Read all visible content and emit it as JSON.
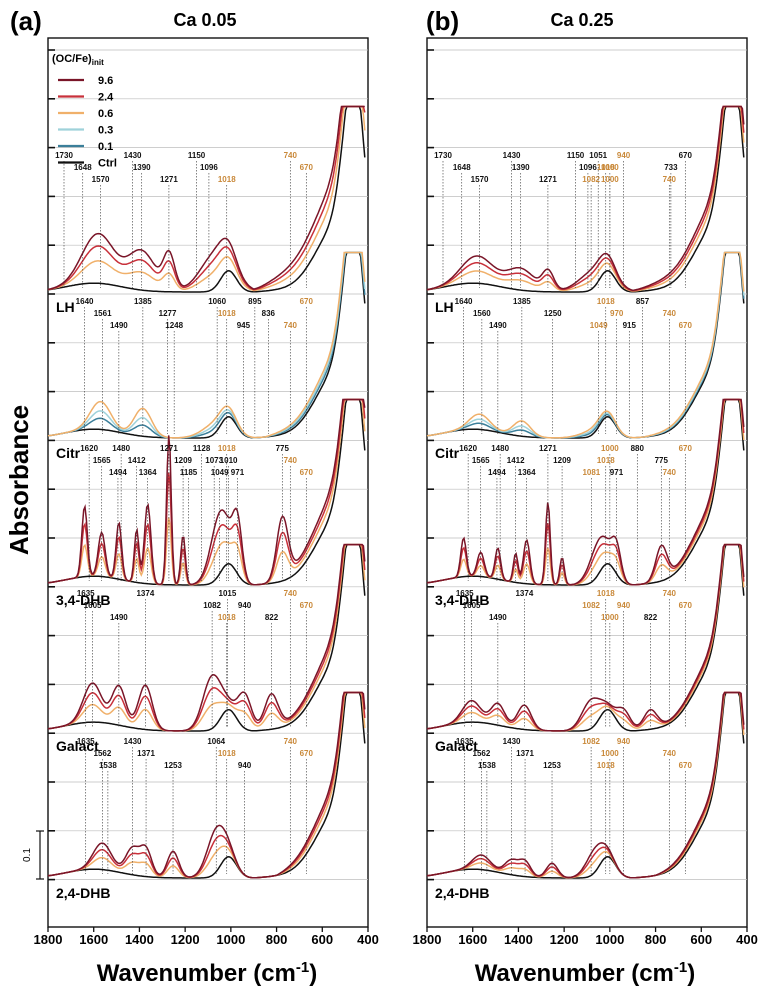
{
  "figure": {
    "ylabel": "Absorbance",
    "xlabel_main": "Wavenumber (cm",
    "xlabel_sup": "-1",
    "xlabel_close": ")",
    "scale_bar": "0.1",
    "legend_title_main": "(OC/Fe)",
    "legend_title_sub": "init"
  },
  "legend": [
    {
      "key": "9.6",
      "label": "9.6",
      "color": "#7a1528"
    },
    {
      "key": "2.4",
      "label": "2.4",
      "color": "#c8303a"
    },
    {
      "key": "0.6",
      "label": "0.6",
      "color": "#f0b06a"
    },
    {
      "key": "0.3",
      "label": "0.3",
      "color": "#9fd2da"
    },
    {
      "key": "0.1",
      "label": "0.1",
      "color": "#3b7f9a"
    },
    {
      "key": "Ctrl",
      "label": "Ctrl",
      "color": "#111111"
    }
  ],
  "chart_data": [
    {
      "type": "line",
      "panel_label": "(a)",
      "title": "Ca 0.05",
      "xlim": [
        1800,
        400
      ],
      "xticks": [
        1800,
        1600,
        1400,
        1200,
        1000,
        800,
        600,
        400
      ],
      "xlabel": "Wavenumber (cm-1)",
      "ylabel": "Absorbance",
      "samples": [
        {
          "name": "LH",
          "series": [
            "9.6",
            "2.4",
            "0.6",
            "Ctrl"
          ],
          "peaks": [
            {
              "x": 1730,
              "label": "1730",
              "c": "b"
            },
            {
              "x": 1648,
              "label": "1648",
              "c": "b"
            },
            {
              "x": 1570,
              "label": "1570",
              "c": "b"
            },
            {
              "x": 1430,
              "label": "1430",
              "c": "b"
            },
            {
              "x": 1390,
              "label": "1390",
              "c": "b"
            },
            {
              "x": 1271,
              "label": "1271",
              "c": "b"
            },
            {
              "x": 1150,
              "label": "1150",
              "c": "b"
            },
            {
              "x": 1096,
              "label": "1096",
              "c": "b"
            },
            {
              "x": 1018,
              "label": "1018",
              "c": "o"
            },
            {
              "x": 740,
              "label": "740",
              "c": "o"
            },
            {
              "x": 670,
              "label": "670",
              "c": "o"
            }
          ]
        },
        {
          "name": "Citr",
          "series": [
            "0.6",
            "0.3",
            "0.1",
            "Ctrl"
          ],
          "peaks": [
            {
              "x": 1640,
              "label": "1640",
              "c": "b"
            },
            {
              "x": 1561,
              "label": "1561",
              "c": "b"
            },
            {
              "x": 1490,
              "label": "1490",
              "c": "b"
            },
            {
              "x": 1385,
              "label": "1385",
              "c": "b"
            },
            {
              "x": 1277,
              "label": "1277",
              "c": "b"
            },
            {
              "x": 1248,
              "label": "1248",
              "c": "b"
            },
            {
              "x": 1060,
              "label": "1060",
              "c": "b"
            },
            {
              "x": 1018,
              "label": "1018",
              "c": "o"
            },
            {
              "x": 945,
              "label": "945",
              "c": "b"
            },
            {
              "x": 895,
              "label": "895",
              "c": "b"
            },
            {
              "x": 836,
              "label": "836",
              "c": "b"
            },
            {
              "x": 740,
              "label": "740",
              "c": "o"
            },
            {
              "x": 670,
              "label": "670",
              "c": "o"
            }
          ]
        },
        {
          "name": "3,4-DHB",
          "series": [
            "9.6",
            "2.4",
            "0.6",
            "Ctrl"
          ],
          "peaks": [
            {
              "x": 1620,
              "label": "1620",
              "c": "b"
            },
            {
              "x": 1565,
              "label": "1565",
              "c": "b"
            },
            {
              "x": 1494,
              "label": "1494",
              "c": "b"
            },
            {
              "x": 1480,
              "label": "1480",
              "c": "b"
            },
            {
              "x": 1412,
              "label": "1412",
              "c": "b"
            },
            {
              "x": 1364,
              "label": "1364",
              "c": "b"
            },
            {
              "x": 1271,
              "label": "1271",
              "c": "b"
            },
            {
              "x": 1209,
              "label": "1209",
              "c": "b"
            },
            {
              "x": 1185,
              "label": "1185",
              "c": "b"
            },
            {
              "x": 1128,
              "label": "1128",
              "c": "b"
            },
            {
              "x": 1073,
              "label": "1073",
              "c": "b"
            },
            {
              "x": 1049,
              "label": "1049",
              "c": "b"
            },
            {
              "x": 1018,
              "label": "1018",
              "c": "o"
            },
            {
              "x": 1010,
              "label": "1010",
              "c": "b"
            },
            {
              "x": 971,
              "label": "971",
              "c": "b"
            },
            {
              "x": 775,
              "label": "775",
              "c": "b"
            },
            {
              "x": 740,
              "label": "740",
              "c": "o"
            },
            {
              "x": 670,
              "label": "670",
              "c": "o"
            }
          ]
        },
        {
          "name": "Galact",
          "series": [
            "9.6",
            "2.4",
            "0.6",
            "Ctrl"
          ],
          "peaks": [
            {
              "x": 1635,
              "label": "1635",
              "c": "b"
            },
            {
              "x": 1605,
              "label": "1605",
              "c": "b"
            },
            {
              "x": 1490,
              "label": "1490",
              "c": "b"
            },
            {
              "x": 1374,
              "label": "1374",
              "c": "b"
            },
            {
              "x": 1082,
              "label": "1082",
              "c": "b"
            },
            {
              "x": 1018,
              "label": "1018",
              "c": "o"
            },
            {
              "x": 1015,
              "label": "1015",
              "c": "b"
            },
            {
              "x": 940,
              "label": "940",
              "c": "b"
            },
            {
              "x": 822,
              "label": "822",
              "c": "b"
            },
            {
              "x": 740,
              "label": "740",
              "c": "o"
            },
            {
              "x": 670,
              "label": "670",
              "c": "o"
            }
          ]
        },
        {
          "name": "2,4-DHB",
          "series": [
            "9.6",
            "2.4",
            "0.6",
            "Ctrl"
          ],
          "peaks": [
            {
              "x": 1635,
              "label": "1635",
              "c": "b"
            },
            {
              "x": 1562,
              "label": "1562",
              "c": "b"
            },
            {
              "x": 1538,
              "label": "1538",
              "c": "b"
            },
            {
              "x": 1430,
              "label": "1430",
              "c": "b"
            },
            {
              "x": 1371,
              "label": "1371",
              "c": "b"
            },
            {
              "x": 1253,
              "label": "1253",
              "c": "b"
            },
            {
              "x": 1064,
              "label": "1064",
              "c": "b"
            },
            {
              "x": 1018,
              "label": "1018",
              "c": "o"
            },
            {
              "x": 940,
              "label": "940",
              "c": "b"
            },
            {
              "x": 740,
              "label": "740",
              "c": "o"
            },
            {
              "x": 670,
              "label": "670",
              "c": "o"
            }
          ]
        }
      ]
    },
    {
      "type": "line",
      "panel_label": "(b)",
      "title": "Ca 0.25",
      "xlim": [
        1800,
        400
      ],
      "xticks": [
        1800,
        1600,
        1400,
        1200,
        1000,
        800,
        600,
        400
      ],
      "xlabel": "Wavenumber (cm-1)",
      "ylabel": "Absorbance",
      "samples": [
        {
          "name": "LH",
          "series": [
            "9.6",
            "2.4",
            "0.6",
            "Ctrl"
          ],
          "peaks": [
            {
              "x": 1730,
              "label": "1730",
              "c": "b"
            },
            {
              "x": 1648,
              "label": "1648",
              "c": "b"
            },
            {
              "x": 1570,
              "label": "1570",
              "c": "b"
            },
            {
              "x": 1430,
              "label": "1430",
              "c": "b"
            },
            {
              "x": 1390,
              "label": "1390",
              "c": "b"
            },
            {
              "x": 1271,
              "label": "1271",
              "c": "b"
            },
            {
              "x": 1150,
              "label": "1150",
              "c": "b"
            },
            {
              "x": 1096,
              "label": "1096",
              "c": "b"
            },
            {
              "x": 1082,
              "label": "1082",
              "c": "o"
            },
            {
              "x": 1051,
              "label": "1051",
              "c": "b"
            },
            {
              "x": 1018,
              "label": "1018",
              "c": "o"
            },
            {
              "x": 1000,
              "label": "1000",
              "c": "o"
            },
            {
              "x": 940,
              "label": "940",
              "c": "o"
            },
            {
              "x": 733,
              "label": "733",
              "c": "b"
            },
            {
              "x": 740,
              "label": "740",
              "c": "o"
            },
            {
              "x": 670,
              "label": "670",
              "c": "b"
            },
            {
              "x": 1000,
              "label": "1000",
              "c": "o"
            }
          ]
        },
        {
          "name": "Citr",
          "series": [
            "0.6",
            "0.3",
            "0.1",
            "Ctrl"
          ],
          "peaks": [
            {
              "x": 1640,
              "label": "1640",
              "c": "b"
            },
            {
              "x": 1560,
              "label": "1560",
              "c": "b"
            },
            {
              "x": 1490,
              "label": "1490",
              "c": "b"
            },
            {
              "x": 1385,
              "label": "1385",
              "c": "b"
            },
            {
              "x": 1250,
              "label": "1250",
              "c": "b"
            },
            {
              "x": 1049,
              "label": "1049",
              "c": "o"
            },
            {
              "x": 1018,
              "label": "1018",
              "c": "o"
            },
            {
              "x": 970,
              "label": "970",
              "c": "o"
            },
            {
              "x": 915,
              "label": "915",
              "c": "b"
            },
            {
              "x": 857,
              "label": "857",
              "c": "b"
            },
            {
              "x": 740,
              "label": "740",
              "c": "o"
            },
            {
              "x": 670,
              "label": "670",
              "c": "o"
            }
          ]
        },
        {
          "name": "3,4-DHB",
          "series": [
            "9.6",
            "2.4",
            "0.6",
            "Ctrl"
          ],
          "peaks": [
            {
              "x": 1620,
              "label": "1620",
              "c": "b"
            },
            {
              "x": 1565,
              "label": "1565",
              "c": "b"
            },
            {
              "x": 1494,
              "label": "1494",
              "c": "b"
            },
            {
              "x": 1480,
              "label": "1480",
              "c": "b"
            },
            {
              "x": 1412,
              "label": "1412",
              "c": "b"
            },
            {
              "x": 1364,
              "label": "1364",
              "c": "b"
            },
            {
              "x": 1271,
              "label": "1271",
              "c": "b"
            },
            {
              "x": 1209,
              "label": "1209",
              "c": "b"
            },
            {
              "x": 1081,
              "label": "1081",
              "c": "o"
            },
            {
              "x": 1000,
              "label": "1000",
              "c": "o"
            },
            {
              "x": 1018,
              "label": "1018",
              "c": "o"
            },
            {
              "x": 971,
              "label": "971",
              "c": "b"
            },
            {
              "x": 880,
              "label": "880",
              "c": "b"
            },
            {
              "x": 775,
              "label": "775",
              "c": "b"
            },
            {
              "x": 740,
              "label": "740",
              "c": "o"
            },
            {
              "x": 670,
              "label": "670",
              "c": "o"
            }
          ]
        },
        {
          "name": "Galact",
          "series": [
            "9.6",
            "2.4",
            "0.6",
            "Ctrl"
          ],
          "peaks": [
            {
              "x": 1635,
              "label": "1635",
              "c": "b"
            },
            {
              "x": 1605,
              "label": "1605",
              "c": "b"
            },
            {
              "x": 1490,
              "label": "1490",
              "c": "b"
            },
            {
              "x": 1374,
              "label": "1374",
              "c": "b"
            },
            {
              "x": 1082,
              "label": "1082",
              "c": "o"
            },
            {
              "x": 1000,
              "label": "1000",
              "c": "o"
            },
            {
              "x": 1018,
              "label": "1018",
              "c": "o"
            },
            {
              "x": 940,
              "label": "940",
              "c": "o"
            },
            {
              "x": 822,
              "label": "822",
              "c": "b"
            },
            {
              "x": 740,
              "label": "740",
              "c": "o"
            },
            {
              "x": 670,
              "label": "670",
              "c": "o"
            }
          ]
        },
        {
          "name": "2,4-DHB",
          "series": [
            "9.6",
            "2.4",
            "0.6",
            "Ctrl"
          ],
          "peaks": [
            {
              "x": 1635,
              "label": "1635",
              "c": "b"
            },
            {
              "x": 1562,
              "label": "1562",
              "c": "b"
            },
            {
              "x": 1538,
              "label": "1538",
              "c": "b"
            },
            {
              "x": 1430,
              "label": "1430",
              "c": "b"
            },
            {
              "x": 1371,
              "label": "1371",
              "c": "b"
            },
            {
              "x": 1253,
              "label": "1253",
              "c": "b"
            },
            {
              "x": 1082,
              "label": "1082",
              "c": "o"
            },
            {
              "x": 1000,
              "label": "1000",
              "c": "o"
            },
            {
              "x": 1018,
              "label": "1018",
              "c": "o"
            },
            {
              "x": 940,
              "label": "940",
              "c": "o"
            },
            {
              "x": 740,
              "label": "740",
              "c": "o"
            },
            {
              "x": 670,
              "label": "670",
              "c": "o"
            }
          ]
        }
      ]
    }
  ],
  "peak_colors": {
    "b": "#111111",
    "o": "#c9893a"
  }
}
